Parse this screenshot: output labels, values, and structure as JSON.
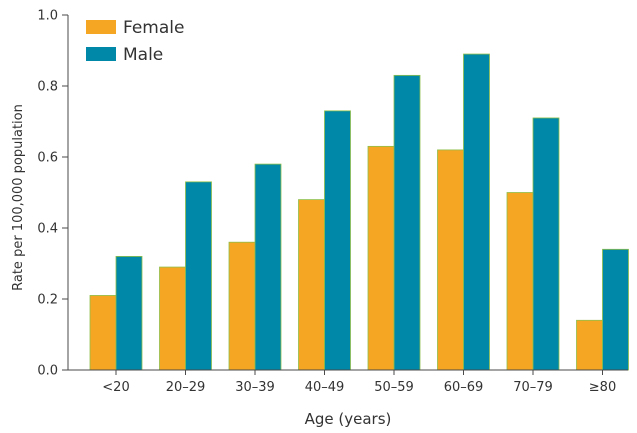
{
  "chart_data": {
    "type": "bar",
    "categories": [
      "<20",
      "20–29",
      "30–39",
      "40–49",
      "50–59",
      "60–69",
      "70–79",
      "≥80"
    ],
    "series": [
      {
        "name": "Female",
        "color": "#f5a623",
        "values": [
          0.21,
          0.29,
          0.36,
          0.48,
          0.63,
          0.62,
          0.5,
          0.14
        ]
      },
      {
        "name": "Male",
        "color": "#0088a8",
        "values": [
          0.32,
          0.53,
          0.58,
          0.73,
          0.83,
          0.89,
          0.71,
          0.34
        ]
      }
    ],
    "title": "",
    "xlabel": "Age (years)",
    "ylabel": "Rate per 100,000 population",
    "ylim": [
      0,
      1.0
    ],
    "yticks": [
      "0.0",
      "0.2",
      "0.4",
      "0.6",
      "0.8",
      "1.0"
    ],
    "grid": false,
    "legend": "top-left"
  }
}
